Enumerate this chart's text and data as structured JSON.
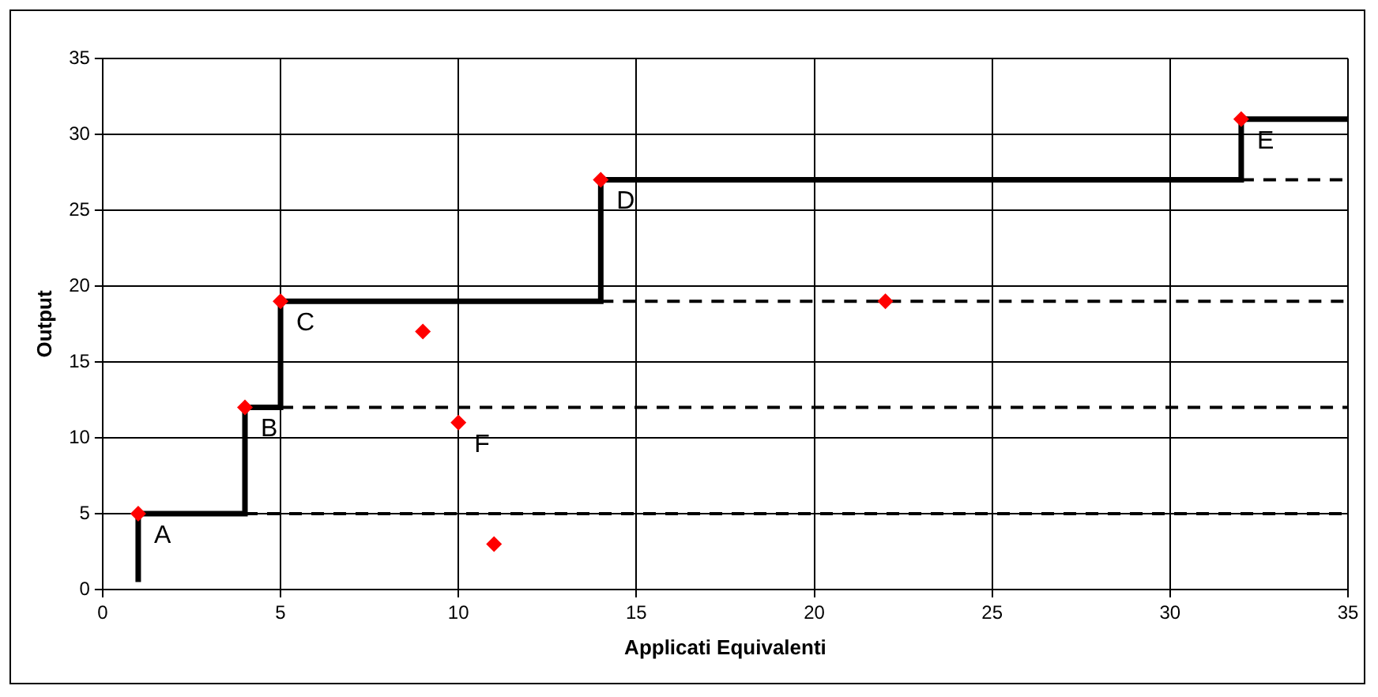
{
  "chart_data": {
    "type": "scatter",
    "xlabel": "Applicati Equivalenti",
    "ylabel": "Output",
    "xlim": [
      0,
      35
    ],
    "xticks": [
      0,
      5,
      10,
      15,
      20,
      25,
      30,
      35
    ],
    "ylim": [
      0,
      35
    ],
    "yticks": [
      0,
      5,
      10,
      15,
      20,
      25,
      30,
      35
    ],
    "grid": true,
    "legend": false,
    "series": [
      {
        "type": "step",
        "color": "#000000",
        "line_style": "solid",
        "marker": "none",
        "x": [
          1,
          1,
          4,
          5,
          14,
          32,
          35
        ],
        "values": [
          0.5,
          5,
          12,
          19,
          27,
          31,
          31
        ]
      },
      {
        "type": "line",
        "color": "#000000",
        "line_style": "dashed",
        "marker": "none",
        "x": [
          4,
          35
        ],
        "values": [
          5,
          5
        ]
      },
      {
        "type": "line",
        "color": "#000000",
        "line_style": "dashed",
        "marker": "none",
        "x": [
          5,
          35
        ],
        "values": [
          12,
          12
        ]
      },
      {
        "type": "line",
        "color": "#000000",
        "line_style": "dashed",
        "marker": "none",
        "x": [
          14,
          35
        ],
        "values": [
          19,
          19
        ]
      },
      {
        "type": "line",
        "color": "#000000",
        "line_style": "dashed",
        "marker": "none",
        "x": [
          32,
          35
        ],
        "values": [
          27,
          27
        ]
      },
      {
        "color": "#ff0000",
        "marker": "diamond",
        "x": [
          1,
          4,
          5,
          9,
          10,
          11,
          14,
          22,
          32
        ],
        "values": [
          5,
          12,
          19,
          17,
          11,
          3,
          27,
          19,
          31
        ]
      }
    ],
    "annotations": [
      {
        "text": "A",
        "x": 1,
        "y": 5
      },
      {
        "text": "B",
        "x": 4,
        "y": 12
      },
      {
        "text": "C",
        "x": 5,
        "y": 19
      },
      {
        "text": "D",
        "x": 14,
        "y": 27
      },
      {
        "text": "E",
        "x": 32,
        "y": 31
      },
      {
        "text": "F",
        "x": 10,
        "y": 11
      }
    ]
  }
}
